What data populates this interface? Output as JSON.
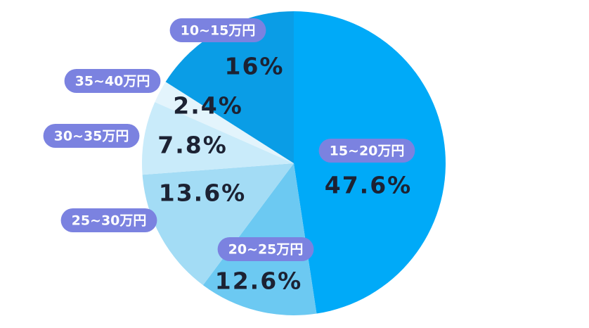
{
  "chart_data": {
    "type": "pie",
    "categories": [
      "15~20万円",
      "20~25万円",
      "25~30万円",
      "30~35万円",
      "35~40万円",
      "10~15万円"
    ],
    "values": [
      47.6,
      12.6,
      13.6,
      7.8,
      2.4,
      16
    ],
    "value_labels": [
      "47.6%",
      "12.6%",
      "13.6%",
      "7.8%",
      "2.4%",
      "16%"
    ],
    "colors": [
      "#00aaf8",
      "#6cc9f2",
      "#a3dcf5",
      "#c9ebfa",
      "#e3f4fc",
      "#0a9de6"
    ],
    "label_color": "#7b82e0"
  }
}
